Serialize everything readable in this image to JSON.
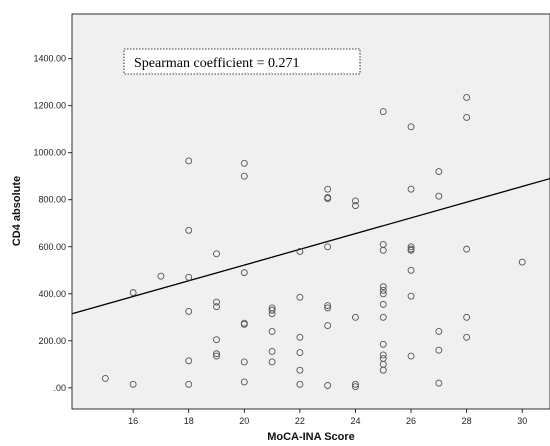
{
  "chart_data": {
    "type": "scatter",
    "xlabel": "MoCA-INA Score",
    "ylabel": "CD4 absolute",
    "annotation": "Spearman coefficient = 0.271",
    "xlim": [
      13.8,
      31
    ],
    "ylim": [
      -90,
      1590
    ],
    "xticks": [
      16,
      18,
      20,
      22,
      24,
      26,
      28,
      30
    ],
    "yticks": [
      0,
      200,
      400,
      600,
      800,
      1000,
      1200,
      1400
    ],
    "ytick_labels": [
      ".00",
      "200.00",
      "400.00",
      "600.00",
      "800.00",
      "1000.00",
      "1200.00",
      "1400.00"
    ],
    "fit_line": {
      "x": [
        13.8,
        31
      ],
      "y": [
        315,
        890
      ]
    },
    "colors": {
      "plot_bg": "#f0f0f0",
      "point": "#555555",
      "line": "#000000"
    },
    "points": [
      {
        "x": 15,
        "y": 40
      },
      {
        "x": 16,
        "y": 15
      },
      {
        "x": 16,
        "y": 405
      },
      {
        "x": 17,
        "y": 475
      },
      {
        "x": 18,
        "y": 965
      },
      {
        "x": 18,
        "y": 670
      },
      {
        "x": 18,
        "y": 470
      },
      {
        "x": 18,
        "y": 325
      },
      {
        "x": 18,
        "y": 115
      },
      {
        "x": 18,
        "y": 15
      },
      {
        "x": 19,
        "y": 570
      },
      {
        "x": 19,
        "y": 365
      },
      {
        "x": 19,
        "y": 345
      },
      {
        "x": 19,
        "y": 205
      },
      {
        "x": 19,
        "y": 145
      },
      {
        "x": 19,
        "y": 135
      },
      {
        "x": 20,
        "y": 955
      },
      {
        "x": 20,
        "y": 900
      },
      {
        "x": 20,
        "y": 490
      },
      {
        "x": 20,
        "y": 275
      },
      {
        "x": 20,
        "y": 270
      },
      {
        "x": 20,
        "y": 110
      },
      {
        "x": 20,
        "y": 25
      },
      {
        "x": 21,
        "y": 340
      },
      {
        "x": 21,
        "y": 330
      },
      {
        "x": 21,
        "y": 315
      },
      {
        "x": 21,
        "y": 240
      },
      {
        "x": 21,
        "y": 155
      },
      {
        "x": 21,
        "y": 110
      },
      {
        "x": 22,
        "y": 580
      },
      {
        "x": 22,
        "y": 385
      },
      {
        "x": 22,
        "y": 215
      },
      {
        "x": 22,
        "y": 150
      },
      {
        "x": 22,
        "y": 75
      },
      {
        "x": 22,
        "y": 15
      },
      {
        "x": 23,
        "y": 845
      },
      {
        "x": 23,
        "y": 810
      },
      {
        "x": 23,
        "y": 805
      },
      {
        "x": 23,
        "y": 600
      },
      {
        "x": 23,
        "y": 350
      },
      {
        "x": 23,
        "y": 340
      },
      {
        "x": 23,
        "y": 265
      },
      {
        "x": 23,
        "y": 10
      },
      {
        "x": 24,
        "y": 795
      },
      {
        "x": 24,
        "y": 775
      },
      {
        "x": 24,
        "y": 300
      },
      {
        "x": 24,
        "y": 15
      },
      {
        "x": 24,
        "y": 5
      },
      {
        "x": 25,
        "y": 1175
      },
      {
        "x": 25,
        "y": 610
      },
      {
        "x": 25,
        "y": 585
      },
      {
        "x": 25,
        "y": 430
      },
      {
        "x": 25,
        "y": 415
      },
      {
        "x": 25,
        "y": 400
      },
      {
        "x": 25,
        "y": 355
      },
      {
        "x": 25,
        "y": 300
      },
      {
        "x": 25,
        "y": 185
      },
      {
        "x": 25,
        "y": 140
      },
      {
        "x": 25,
        "y": 125
      },
      {
        "x": 25,
        "y": 100
      },
      {
        "x": 25,
        "y": 75
      },
      {
        "x": 26,
        "y": 1110
      },
      {
        "x": 26,
        "y": 845
      },
      {
        "x": 26,
        "y": 600
      },
      {
        "x": 26,
        "y": 590
      },
      {
        "x": 26,
        "y": 585
      },
      {
        "x": 26,
        "y": 500
      },
      {
        "x": 26,
        "y": 390
      },
      {
        "x": 26,
        "y": 135
      },
      {
        "x": 27,
        "y": 920
      },
      {
        "x": 27,
        "y": 815
      },
      {
        "x": 27,
        "y": 240
      },
      {
        "x": 27,
        "y": 160
      },
      {
        "x": 27,
        "y": 20
      },
      {
        "x": 28,
        "y": 1235
      },
      {
        "x": 28,
        "y": 1150
      },
      {
        "x": 28,
        "y": 590
      },
      {
        "x": 28,
        "y": 300
      },
      {
        "x": 28,
        "y": 215
      },
      {
        "x": 30,
        "y": 535
      }
    ]
  }
}
